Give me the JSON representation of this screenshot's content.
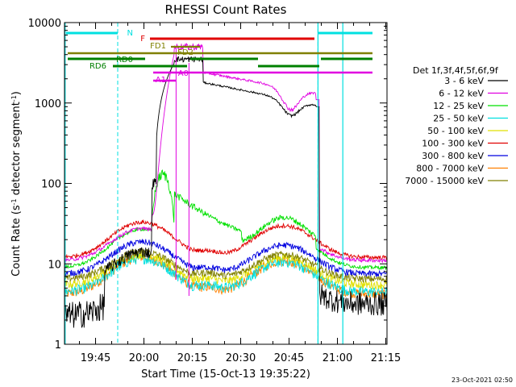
{
  "chart_data": {
    "type": "line",
    "title": "RHESSI Count Rates",
    "xlabel": "Start Time (15-Oct-13 19:35:22)",
    "ylabel_main": "Count Rate (s",
    "ylabel_exp1": "-1",
    "ylabel_mid": " detector segment",
    "ylabel_exp2": "-1",
    "ylabel_end": ")",
    "yscale": "log",
    "xlim_minutes": [
      0,
      100
    ],
    "ylim": [
      1,
      10000
    ],
    "xticks": [
      {
        "label": "19:45",
        "t": 9.63
      },
      {
        "label": "20:00",
        "t": 24.63
      },
      {
        "label": "20:15",
        "t": 39.63
      },
      {
        "label": "20:30",
        "t": 54.63
      },
      {
        "label": "20:45",
        "t": 69.63
      },
      {
        "label": "21:00",
        "t": 84.63
      },
      {
        "label": "21:15",
        "t": 99.63
      }
    ],
    "yticks": [
      {
        "label": "1",
        "v": 1
      },
      {
        "label": "10",
        "v": 10
      },
      {
        "label": "100",
        "v": 100
      },
      {
        "label": "1000",
        "v": 1000
      },
      {
        "label": "10000",
        "v": 10000
      }
    ],
    "legend_title": "Det 1f,3f,4f,5f,6f,9f",
    "series": [
      {
        "name": "3 - 6 keV",
        "color": "#000000"
      },
      {
        "name": "6 - 12 keV",
        "color": "#e000e0"
      },
      {
        "name": "12 - 25 keV",
        "color": "#00e000"
      },
      {
        "name": "25 - 50 keV",
        "color": "#00e0e0"
      },
      {
        "name": "50 - 100 keV",
        "color": "#e0e000"
      },
      {
        "name": "100 - 300 keV",
        "color": "#e00000"
      },
      {
        "name": "300 - 800 keV",
        "color": "#0000e0"
      },
      {
        "name": "800 - 7000 keV",
        "color": "#ff8000"
      },
      {
        "name": "7000 - 15000 keV",
        "color": "#808000"
      }
    ],
    "night_boundaries_minutes": [
      16.5,
      78.6
    ],
    "saa_boundaries_minutes": [
      0.2,
      86.3
    ],
    "flags": [
      {
        "label": "N",
        "color": "#00e0e0"
      },
      {
        "label": "F",
        "color": "#e00000"
      },
      {
        "label": "FD1",
        "color": "#808000"
      },
      {
        "label": "FD2",
        "color": "#808000"
      },
      {
        "label": "RD0",
        "color": "#008000"
      },
      {
        "label": "RD6",
        "color": "#008000"
      },
      {
        "label": "A0",
        "color": "#e000e0"
      },
      {
        "label": "A1",
        "color": "#e000e0"
      }
    ]
  },
  "timestamp": "23-Oct-2021 02:50"
}
